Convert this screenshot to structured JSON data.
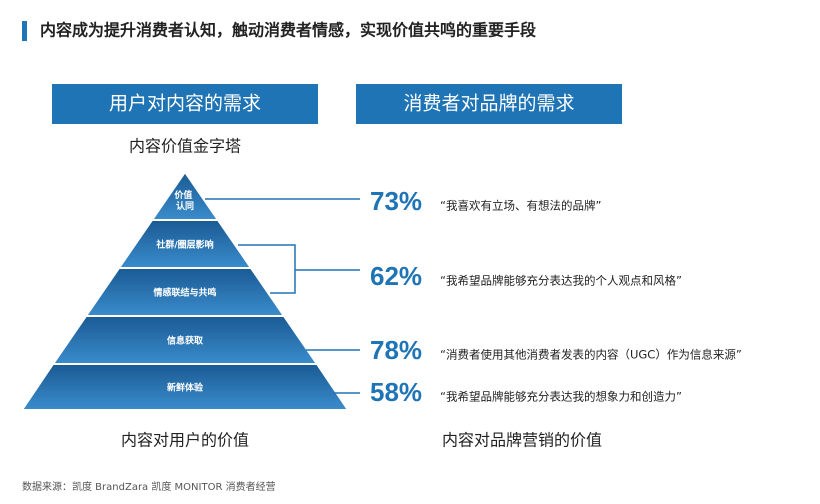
{
  "title": "内容成为提升消费者认知，触动消费者情感，实现价值共鸣的重要手段",
  "headers": [
    "用户对内容的需求",
    "消费者对品牌的需求"
  ],
  "pyramid_title": "内容价值金字塔",
  "pyramid": {
    "layers": [
      [
        "价值",
        "认同"
      ],
      "社群/圈层影响",
      "情感联结与共鸣",
      "信息获取",
      "新鲜体验"
    ]
  },
  "stats": [
    {
      "percent": "73%",
      "quote": "“我喜欢有立场、有想法的品牌”"
    },
    {
      "percent": "62%",
      "quote": "“我希望品牌能够充分表达我的个人观点和风格”"
    },
    {
      "percent": "78%",
      "quote": "“消费者使用其他消费者发表的内容（UGC）作为信息来源”"
    },
    {
      "percent": "58%",
      "quote": "“我希望品牌能够充分表达我的想象力和创造力”"
    }
  ],
  "footers": [
    "内容对用户的价值",
    "内容对品牌营销的价值"
  ],
  "source": "数据来源：凯度 BrandZara 凯度 MONITOR 消费者经营"
}
